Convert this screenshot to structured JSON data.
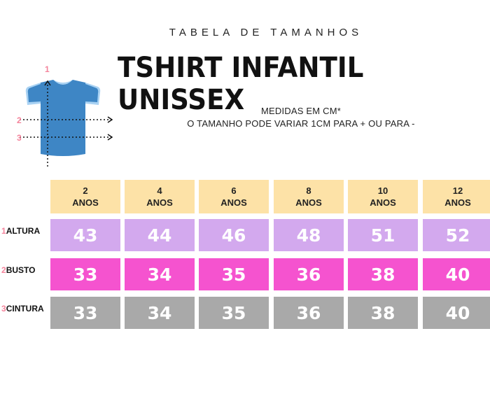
{
  "header": {
    "subtitle": "TABELA DE TAMANHOS",
    "title": "TSHIRT INFANTIL UNISSEX",
    "note_line1": "MEDIDAS EM CM*",
    "note_line2": "O TAMANHO PODE VARIAR 1CM PARA + OU PARA -"
  },
  "diagram": {
    "marker_1": "1",
    "marker_2": "2",
    "marker_3": "3",
    "shirt_color": "#3e86c5",
    "trim_color": "#a9d2f3"
  },
  "table": {
    "sizes": [
      {
        "num": "2",
        "unit": "ANOS"
      },
      {
        "num": "4",
        "unit": "ANOS"
      },
      {
        "num": "6",
        "unit": "ANOS"
      },
      {
        "num": "8",
        "unit": "ANOS"
      },
      {
        "num": "10",
        "unit": "ANOS"
      },
      {
        "num": "12",
        "unit": "ANOS"
      }
    ],
    "rows": [
      {
        "num": "1",
        "label": "ALTURA",
        "color": "#d3a9ee",
        "values": [
          "43",
          "44",
          "46",
          "48",
          "51",
          "52"
        ]
      },
      {
        "num": "2",
        "label": "BUSTO",
        "color": "#f553cf",
        "values": [
          "33",
          "34",
          "35",
          "36",
          "38",
          "40"
        ]
      },
      {
        "num": "3",
        "label": "CINTURA",
        "color": "#a9a9a9",
        "values": [
          "33",
          "34",
          "35",
          "36",
          "38",
          "40"
        ]
      }
    ],
    "header_color": "#fde2a7"
  }
}
